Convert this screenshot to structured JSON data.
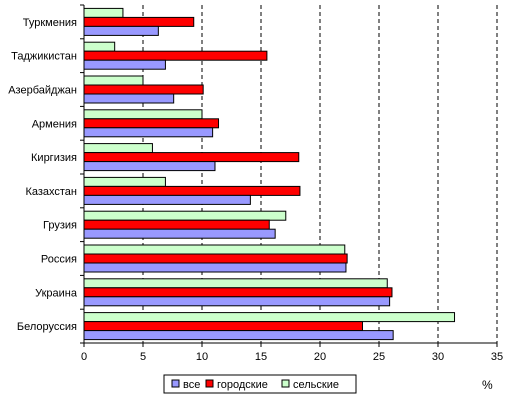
{
  "chart_data": {
    "type": "bar",
    "orientation": "horizontal",
    "categories": [
      "Туркмения",
      "Таджикистан",
      "Азербайджан",
      "Армения",
      "Киргизия",
      "Казахстан",
      "Грузия",
      "Россия",
      "Украина",
      "Белоруссия"
    ],
    "series": [
      {
        "name": "все",
        "color": "#9999ff",
        "values": [
          6.3,
          6.9,
          7.6,
          10.9,
          11.1,
          14.1,
          16.2,
          22.2,
          25.9,
          26.2
        ]
      },
      {
        "name": "городские",
        "color": "#ff0000",
        "values": [
          9.3,
          15.5,
          10.1,
          11.4,
          18.2,
          18.3,
          15.7,
          22.3,
          26.1,
          23.6
        ]
      },
      {
        "name": "сельские",
        "color": "#ccffcc",
        "values": [
          3.3,
          2.6,
          5.0,
          10.0,
          5.8,
          6.9,
          17.1,
          22.1,
          25.7,
          31.4
        ]
      }
    ],
    "xlim": [
      0,
      35
    ],
    "xticks": [
      0,
      5,
      10,
      15,
      20,
      25,
      30,
      35
    ],
    "unit_label": "%",
    "grid": "vertical dashed",
    "legend": "bottom"
  }
}
